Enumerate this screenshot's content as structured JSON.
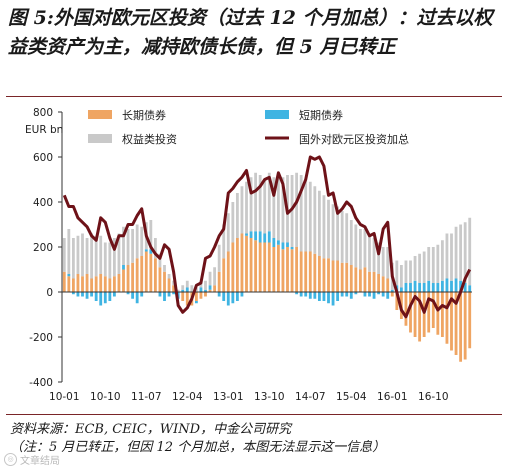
{
  "title": "图 5:外国对欧元区投资（过去 12 个月加总）：过去以权益类资产为主，减持欧债长债，但 5 月已转正",
  "source": "资料来源：ECB, CEIC，WIND，中金公司研究",
  "remark": "（注：5 月已转正，但因 12 个月加总，本图无法显示这一信息）",
  "watermark": "文章结局",
  "colors": {
    "long": "#efa563",
    "short": "#3fb4e2",
    "equity": "#c9c9c9",
    "total": "#6e1218"
  },
  "chart_data": {
    "type": "bar",
    "stacked": true,
    "ylabel": "EUR bn",
    "ylim": [
      -400,
      800
    ],
    "yticks": [
      -400,
      -200,
      0,
      200,
      400,
      600,
      800
    ],
    "xtick_labels": [
      "10-01",
      "10-10",
      "11-07",
      "12-04",
      "13-01",
      "13-10",
      "14-07",
      "15-04",
      "16-01",
      "16-10"
    ],
    "xtick_positions": [
      0,
      9,
      18,
      27,
      36,
      45,
      54,
      63,
      72,
      81
    ],
    "legend": [
      "长期债券",
      "短期债券",
      "权益类投资",
      "国外对欧元区投资加总"
    ],
    "legend_position": "top",
    "x_count": 90,
    "series": [
      {
        "name": "长期债券",
        "type": "bar",
        "values": [
          90,
          70,
          60,
          80,
          70,
          80,
          60,
          70,
          80,
          70,
          60,
          70,
          80,
          100,
          120,
          130,
          150,
          160,
          180,
          170,
          150,
          110,
          90,
          60,
          30,
          0,
          -40,
          -60,
          -60,
          -40,
          -30,
          -20,
          10,
          30,
          90,
          150,
          180,
          220,
          240,
          260,
          250,
          240,
          230,
          220,
          220,
          220,
          200,
          210,
          190,
          200,
          190,
          200,
          180,
          180,
          180,
          170,
          160,
          150,
          150,
          140,
          140,
          130,
          130,
          120,
          110,
          100,
          110,
          90,
          90,
          80,
          70,
          60,
          -20,
          -80,
          -120,
          -150,
          -180,
          -200,
          -220,
          -200,
          -180,
          -160,
          -190,
          -200,
          -230,
          -260,
          -280,
          -310,
          -300,
          -250
        ]
      },
      {
        "name": "短期债券",
        "type": "bar",
        "values": [
          0,
          10,
          -10,
          -20,
          -20,
          -30,
          -20,
          -40,
          -60,
          -50,
          -40,
          -20,
          0,
          20,
          -10,
          -30,
          -50,
          -20,
          10,
          20,
          0,
          -20,
          -40,
          -20,
          -10,
          -30,
          10,
          20,
          0,
          -10,
          20,
          10,
          20,
          0,
          -20,
          -40,
          -60,
          -50,
          -40,
          -20,
          10,
          30,
          40,
          50,
          40,
          50,
          40,
          20,
          30,
          20,
          10,
          -10,
          -20,
          -20,
          -30,
          -30,
          -40,
          -40,
          -50,
          -60,
          -40,
          -20,
          -20,
          -30,
          -10,
          0,
          -20,
          -20,
          -30,
          -10,
          -20,
          -30,
          10,
          30,
          20,
          40,
          40,
          50,
          40,
          40,
          50,
          40,
          40,
          50,
          60,
          50,
          60,
          50,
          40,
          30
        ]
      },
      {
        "name": "权益类投资",
        "type": "bar",
        "values": [
          150,
          200,
          180,
          170,
          190,
          160,
          200,
          180,
          170,
          150,
          160,
          170,
          180,
          170,
          160,
          150,
          150,
          130,
          120,
          130,
          90,
          60,
          30,
          20,
          20,
          10,
          20,
          30,
          30,
          20,
          30,
          40,
          60,
          80,
          120,
          150,
          170,
          180,
          200,
          210,
          230,
          240,
          260,
          250,
          240,
          260,
          270,
          280,
          290,
          300,
          320,
          330,
          340,
          320,
          310,
          300,
          290,
          280,
          260,
          250,
          240,
          230,
          220,
          200,
          190,
          180,
          170,
          160,
          150,
          140,
          130,
          140,
          120,
          110,
          100,
          100,
          100,
          110,
          130,
          140,
          150,
          160,
          170,
          180,
          200,
          210,
          230,
          250,
          270,
          300
        ]
      },
      {
        "name": "国外对欧元区投资加总",
        "type": "line",
        "values": [
          430,
          380,
          380,
          330,
          310,
          290,
          250,
          230,
          330,
          310,
          240,
          190,
          250,
          250,
          300,
          300,
          340,
          370,
          250,
          200,
          170,
          150,
          210,
          190,
          90,
          -60,
          -90,
          -70,
          -30,
          30,
          40,
          150,
          160,
          200,
          250,
          280,
          440,
          460,
          490,
          510,
          540,
          440,
          450,
          470,
          500,
          510,
          430,
          530,
          480,
          350,
          370,
          400,
          450,
          500,
          600,
          590,
          600,
          560,
          430,
          440,
          350,
          370,
          400,
          380,
          330,
          300,
          290,
          250,
          260,
          170,
          280,
          310,
          70,
          0,
          -80,
          -110,
          -60,
          -20,
          -40,
          -90,
          -30,
          -40,
          -80,
          -60,
          -70,
          -30,
          -50,
          0,
          60,
          100
        ]
      }
    ]
  }
}
